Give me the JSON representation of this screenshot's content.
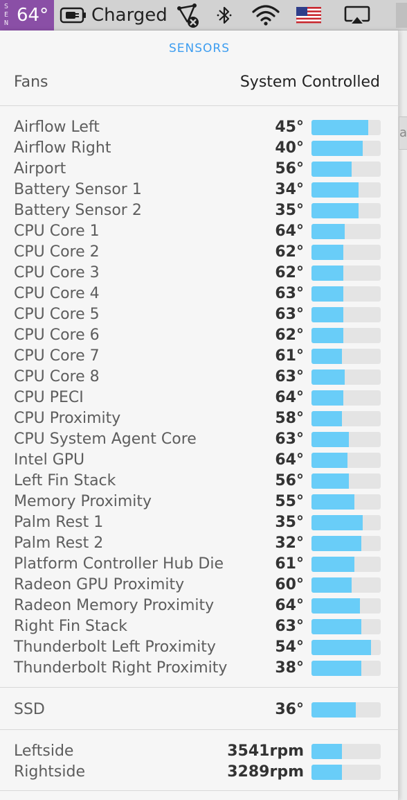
{
  "menubar": {
    "app_letters": [
      "S",
      "E",
      "N"
    ],
    "app_temp": "64°",
    "battery_status": "Charged",
    "icons": [
      "battery-plug-icon",
      "network-off-icon",
      "bluetooth-icon",
      "wifi-icon",
      "us-flag-icon",
      "airplay-icon"
    ]
  },
  "panel": {
    "title": "SENSORS",
    "fans_label": "Fans",
    "fans_mode": "System Controlled",
    "sensors": [
      {
        "name": "Airflow Left",
        "value": "45°",
        "level": 0.82
      },
      {
        "name": "Airflow Right",
        "value": "40°",
        "level": 0.74
      },
      {
        "name": "Airport",
        "value": "56°",
        "level": 0.58
      },
      {
        "name": "Battery Sensor 1",
        "value": "34°",
        "level": 0.68
      },
      {
        "name": "Battery Sensor 2",
        "value": "35°",
        "level": 0.68
      },
      {
        "name": "CPU Core 1",
        "value": "64°",
        "level": 0.48
      },
      {
        "name": "CPU Core 2",
        "value": "62°",
        "level": 0.46
      },
      {
        "name": "CPU Core 3",
        "value": "62°",
        "level": 0.46
      },
      {
        "name": "CPU Core 4",
        "value": "63°",
        "level": 0.46
      },
      {
        "name": "CPU Core 5",
        "value": "63°",
        "level": 0.46
      },
      {
        "name": "CPU Core 6",
        "value": "62°",
        "level": 0.46
      },
      {
        "name": "CPU Core 7",
        "value": "61°",
        "level": 0.44
      },
      {
        "name": "CPU Core 8",
        "value": "63°",
        "level": 0.48
      },
      {
        "name": "CPU PECI",
        "value": "64°",
        "level": 0.46
      },
      {
        "name": "CPU Proximity",
        "value": "58°",
        "level": 0.44
      },
      {
        "name": "CPU System Agent Core",
        "value": "63°",
        "level": 0.54
      },
      {
        "name": "Intel GPU",
        "value": "64°",
        "level": 0.52
      },
      {
        "name": "Left Fin Stack",
        "value": "56°",
        "level": 0.54
      },
      {
        "name": "Memory Proximity",
        "value": "55°",
        "level": 0.62
      },
      {
        "name": "Palm Rest 1",
        "value": "35°",
        "level": 0.74
      },
      {
        "name": "Palm Rest 2",
        "value": "32°",
        "level": 0.72
      },
      {
        "name": "Platform Controller Hub Die",
        "value": "61°",
        "level": 0.62
      },
      {
        "name": "Radeon GPU Proximity",
        "value": "60°",
        "level": 0.58
      },
      {
        "name": "Radeon Memory Proximity",
        "value": "64°",
        "level": 0.7
      },
      {
        "name": "Right Fin Stack",
        "value": "63°",
        "level": 0.72
      },
      {
        "name": "Thunderbolt Left Proximity",
        "value": "54°",
        "level": 0.86
      },
      {
        "name": "Thunderbolt Right Proximity",
        "value": "38°",
        "level": 0.72
      }
    ],
    "ssd": {
      "name": "SSD",
      "value": "36°",
      "level": 0.64
    },
    "fans": [
      {
        "name": "Leftside",
        "value": "3541rpm",
        "level": 0.44
      },
      {
        "name": "Rightside",
        "value": "3289rpm",
        "level": 0.44
      }
    ],
    "edge_snippet": "ac"
  },
  "colors": {
    "menubar_app_bg": "#8a4fa6",
    "title_blue": "#3d9df0",
    "bar_fill": "#69cdf8",
    "bar_track": "#e4e4e4"
  }
}
